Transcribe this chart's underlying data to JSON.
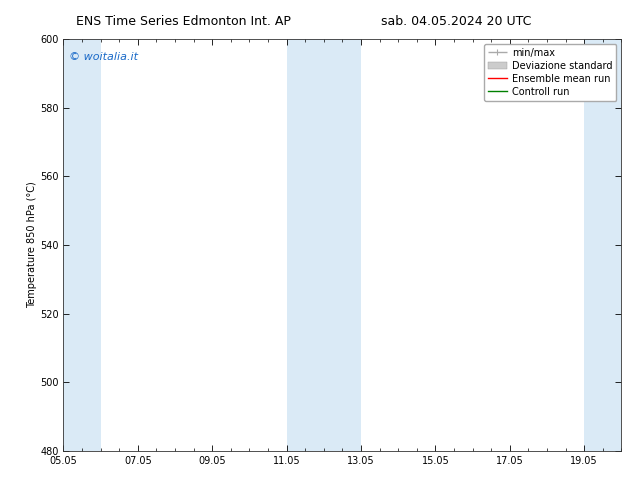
{
  "title_left": "ENS Time Series Edmonton Int. AP",
  "title_right": "sab. 04.05.2024 20 UTC",
  "ylabel": "Temperature 850 hPa (°C)",
  "ylim": [
    480,
    600
  ],
  "yticks": [
    480,
    500,
    520,
    540,
    560,
    580,
    600
  ],
  "xlim": [
    0,
    15
  ],
  "xtick_labels": [
    "05.05",
    "07.05",
    "09.05",
    "11.05",
    "13.05",
    "15.05",
    "17.05",
    "19.05"
  ],
  "xtick_positions": [
    0,
    2,
    4,
    6,
    8,
    10,
    12,
    14
  ],
  "shaded_bands": [
    {
      "start": 0.0,
      "end": 1.0,
      "color": "#daeaf6"
    },
    {
      "start": 6.0,
      "end": 8.0,
      "color": "#daeaf6"
    },
    {
      "start": 14.0,
      "end": 15.0,
      "color": "#daeaf6"
    }
  ],
  "legend_entries": [
    {
      "label": "min/max",
      "color": "#aaaaaa",
      "lw": 1.0,
      "type": "line"
    },
    {
      "label": "Deviazione standard",
      "color": "#cccccc",
      "lw": 4,
      "type": "band"
    },
    {
      "label": "Ensemble mean run",
      "color": "red",
      "lw": 1.0,
      "type": "line"
    },
    {
      "label": "Controll run",
      "color": "green",
      "lw": 1.0,
      "type": "line"
    }
  ],
  "watermark": "© woitalia.it",
  "watermark_color": "#1a6ac8",
  "bg_color": "#ffffff",
  "title_fontsize": 9,
  "axis_fontsize": 7,
  "ylabel_fontsize": 7,
  "legend_fontsize": 7,
  "watermark_fontsize": 8
}
